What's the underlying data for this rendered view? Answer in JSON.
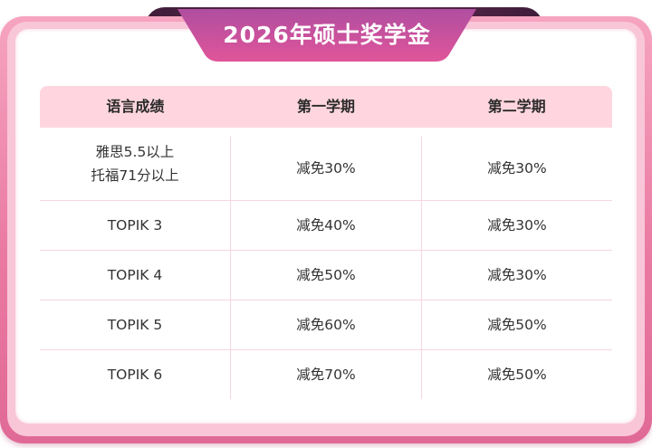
{
  "title": "2026年硕士奖学金",
  "table": {
    "headers": [
      "语言成绩",
      "第一学期",
      "第二学期"
    ],
    "rows": [
      {
        "score_lines": [
          "雅思5.5以上",
          "托福71分以上"
        ],
        "sem1": "减免30%",
        "sem2": "减免30%"
      },
      {
        "score_lines": [
          "TOPIK 3"
        ],
        "sem1": "减免40%",
        "sem2": "减免30%"
      },
      {
        "score_lines": [
          "TOPIK 4"
        ],
        "sem1": "减免50%",
        "sem2": "减免30%"
      },
      {
        "score_lines": [
          "TOPIK 5"
        ],
        "sem1": "减免60%",
        "sem2": "减免50%"
      },
      {
        "score_lines": [
          "TOPIK 6"
        ],
        "sem1": "减免70%",
        "sem2": "减免50%"
      }
    ]
  },
  "colors": {
    "frame": "#ea7aa2",
    "header_bg": "#ffd6df",
    "title_gradient_start": "#b04ea0",
    "title_gradient_end": "#e0559a"
  }
}
